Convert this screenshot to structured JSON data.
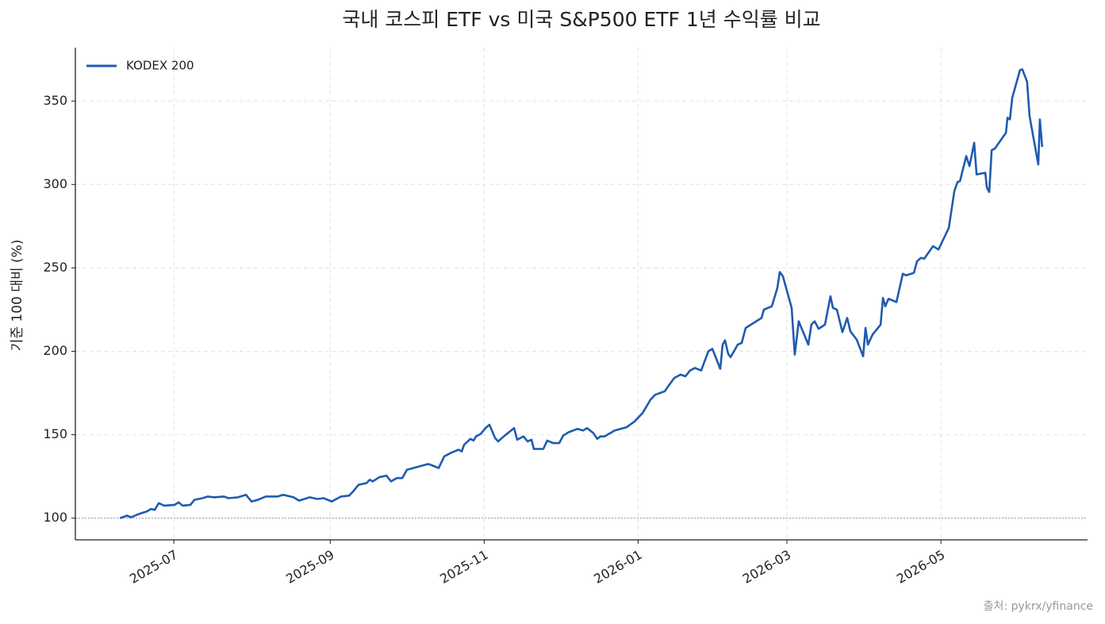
{
  "chart_data": {
    "type": "line",
    "title": "국내 코스피 ETF vs 미국 S&P500 ETF 1년 수익률 비교",
    "ylabel": "기준 100 대비 (%)",
    "source": "출처: pykrx/yfinance",
    "x": [
      2025.4374,
      2025.4451,
      2025.4494,
      2025.458,
      2025.4666,
      2025.471,
      2025.4752,
      2025.4795,
      2025.4856,
      2025.4968,
      2025.5011,
      2025.5054,
      2025.514,
      2025.5183,
      2025.5269,
      2025.5329,
      2025.5398,
      2025.5501,
      2025.5553,
      2025.5656,
      2025.5743,
      2025.5803,
      2025.5872,
      2025.5958,
      2025.6087,
      2025.6147,
      2025.6259,
      2025.6319,
      2025.6434,
      2025.6518,
      2025.6586,
      2025.6673,
      2025.6776,
      2025.6862,
      2025.6905,
      2025.6966,
      2025.7051,
      2025.7086,
      2025.712,
      2025.7189,
      2025.7267,
      2025.7318,
      2025.7378,
      2025.7439,
      2025.749,
      2025.7723,
      2025.7792,
      2025.7835,
      2025.7895,
      2025.7981,
      2025.805,
      2025.8085,
      2025.8111,
      2025.818,
      2025.8214,
      2025.824,
      2025.8292,
      2025.8343,
      2025.8386,
      2025.8447,
      2025.8481,
      2025.8541,
      2025.8653,
      2025.8687,
      2025.8756,
      2025.8799,
      2025.8842,
      2025.8868,
      2025.8971,
      2025.9014,
      2025.9075,
      2025.9144,
      2025.9187,
      2025.9247,
      2025.9342,
      2025.9402,
      2025.9445,
      2025.9514,
      2025.9557,
      2025.9592,
      2025.9635,
      2025.9747,
      2025.9876,
      2025.9962,
      2026.0048,
      2026.0134,
      2026.0186,
      2026.0289,
      2026.0332,
      2026.0393,
      2026.0461,
      2026.0513,
      2026.0565,
      2026.0617,
      2026.0685,
      2026.0763,
      2026.0806,
      2026.0892,
      2026.0918,
      2026.0944,
      2026.0978,
      2026.1004,
      2026.1082,
      2026.1125,
      2026.1168,
      2026.134,
      2026.1366,
      2026.1452,
      2026.1512,
      2026.1538,
      2026.1572,
      2026.1667,
      2026.1701,
      2026.1744,
      2026.1848,
      2026.1882,
      2026.1917,
      2026.196,
      2026.2029,
      2026.2089,
      2026.2115,
      2026.2158,
      2026.2219,
      2026.227,
      2026.2305,
      2026.2374,
      2026.2443,
      2026.2469,
      2026.2495,
      2026.2546,
      2026.2633,
      2026.2659,
      2026.2684,
      2026.2719,
      2026.2805,
      2026.2874,
      2026.2909,
      2026.2995,
      2026.3029,
      2026.3072,
      2026.3107,
      2026.3202,
      2026.3262,
      2026.3374,
      2026.3434,
      2026.3469,
      2026.3495,
      2026.3563,
      2026.3598,
      2026.3649,
      2026.3675,
      2026.377,
      2026.3787,
      2026.3813,
      2026.3839,
      2026.3873,
      2026.3994,
      2026.4011,
      2026.4037,
      2026.4063,
      2026.4146,
      2026.4172,
      2026.4224,
      2026.425,
      2026.4345,
      2026.4362,
      2026.4387
    ],
    "series": [
      {
        "name": "KODEX 200",
        "color": "#1f5bb0",
        "values": [
          100,
          101.5,
          100.5,
          102.5,
          104,
          105.5,
          105,
          109,
          107.5,
          108,
          109.5,
          107.5,
          108,
          111,
          112,
          113,
          112.5,
          113,
          112,
          112.5,
          114,
          110,
          111,
          113,
          113,
          114,
          112.5,
          110.5,
          112.5,
          111.5,
          112,
          110,
          113,
          113.5,
          116,
          120,
          121,
          123,
          122,
          124.5,
          125.5,
          122,
          124,
          124,
          129,
          132.5,
          131,
          130,
          137,
          139.5,
          141,
          140,
          144,
          147.5,
          146.5,
          149,
          150.5,
          154,
          156,
          148,
          146,
          149,
          154,
          147,
          149,
          146,
          147,
          141.5,
          141.5,
          146.5,
          145,
          145,
          149.5,
          151.5,
          153.5,
          152.5,
          154,
          151,
          147.5,
          149,
          149,
          152.5,
          154.5,
          158,
          163,
          171,
          174,
          176,
          179.5,
          184,
          186,
          185,
          188.5,
          190,
          188.5,
          200,
          201.5,
          189.5,
          204,
          206.5,
          198.5,
          196.5,
          204,
          205,
          214,
          220,
          225,
          227,
          238,
          247.5,
          245,
          226,
          198,
          218,
          204,
          216,
          218,
          213.5,
          216,
          233,
          226,
          225,
          211.5,
          220,
          212,
          207,
          197,
          214,
          204,
          210,
          216,
          232,
          227,
          231.5,
          229.5,
          246.5,
          245.5,
          247,
          254,
          256,
          255.5,
          263,
          261,
          274,
          296,
          301.5,
          302,
          317,
          311,
          325,
          306,
          307,
          298,
          295.5,
          320.5,
          321.5,
          331,
          340,
          339,
          352,
          368.5,
          369,
          361.5,
          341,
          312,
          339,
          322.5
        ]
      }
    ],
    "hline": 100,
    "xlim": [
      2025.389,
      2026.488
    ],
    "xticks": [
      {
        "value": 2025.4959,
        "label": "2025-07"
      },
      {
        "value": 2025.6658,
        "label": "2025-09"
      },
      {
        "value": 2025.8329,
        "label": "2025-11"
      },
      {
        "value": 2026.0,
        "label": "2026-01"
      },
      {
        "value": 2026.1616,
        "label": "2026-03"
      },
      {
        "value": 2026.3288,
        "label": "2026-05"
      }
    ],
    "ylim": [
      87,
      382
    ],
    "yticks": [
      100,
      150,
      200,
      250,
      300,
      350
    ],
    "grid": true,
    "legend": "upper left"
  }
}
